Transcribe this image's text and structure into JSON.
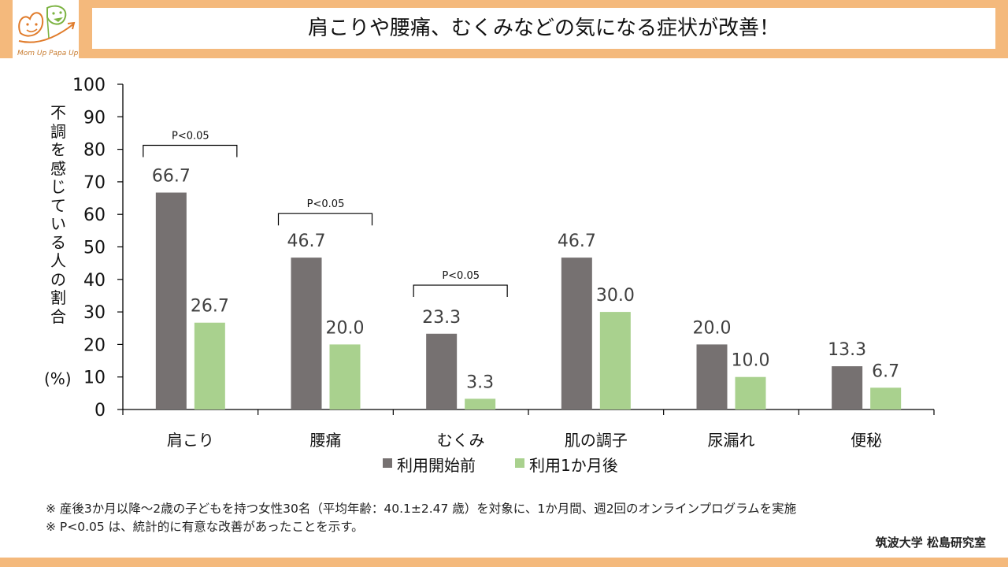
{
  "page": {
    "title": "肩こりや腰痛、むくみなどの気になる症状が改善！",
    "logo_text": "Mom Up Papa Up!",
    "colors": {
      "band": "#f4b97c",
      "before": "#767171",
      "after": "#a9d18e",
      "logo_orange": "#e07b2a",
      "logo_green": "#7cb342"
    },
    "footnotes": [
      "※ 産後3か月以降～2歳の子どもを持つ女性30名（平均年齢：40.1±2.47 歳）を対象に、1か月間、週2回のオンラインプログラムを実施",
      "※ P<0.05 は、統計的に有意な改善があったことを示す。"
    ],
    "credit": "筑波大学 松島研究室"
  },
  "chart_data": {
    "type": "bar",
    "title": "肩こりや腰痛、むくみなどの気になる症状が改善！",
    "xlabel": "",
    "ylabel": "不調を感じている人の割合",
    "ylabel_unit": "(%)",
    "ylim": [
      0,
      100
    ],
    "yticks": [
      0,
      10,
      20,
      30,
      40,
      50,
      60,
      70,
      80,
      90,
      100
    ],
    "grid": false,
    "legend_position": "bottom",
    "categories": [
      "肩こり",
      "腰痛",
      "むくみ",
      "肌の調子",
      "尿漏れ",
      "便秘"
    ],
    "series": [
      {
        "name": "利用開始前",
        "color": "#767171",
        "values": [
          66.7,
          46.7,
          23.3,
          46.7,
          20.0,
          13.3
        ],
        "labels": [
          "66.7",
          "46.7",
          "23.3",
          "46.7",
          "20.0",
          "13.3"
        ]
      },
      {
        "name": "利用1か月後",
        "color": "#a9d18e",
        "values": [
          26.7,
          20.0,
          3.3,
          30.0,
          10.0,
          6.7
        ],
        "labels": [
          "26.7",
          "20.0",
          "3.3",
          "30.0",
          "10.0",
          "6.7"
        ]
      }
    ],
    "annotations": [
      {
        "category": "肩こり",
        "text": "P<0.05",
        "bracket_level": 81
      },
      {
        "category": "腰痛",
        "text": "P<0.05",
        "bracket_level": 60
      },
      {
        "category": "むくみ",
        "text": "P<0.05",
        "bracket_level": 38
      }
    ]
  }
}
